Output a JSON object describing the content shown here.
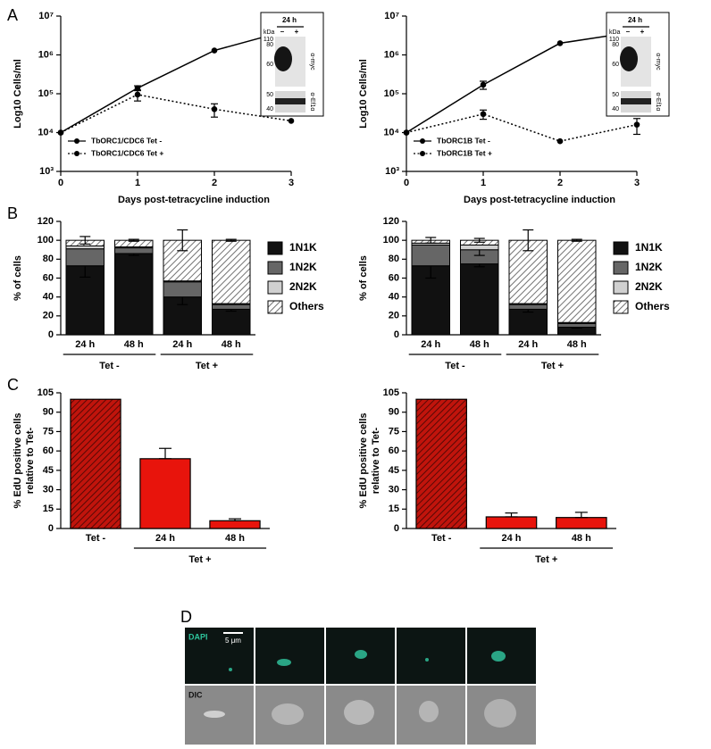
{
  "panel_labels": [
    "A",
    "B",
    "C",
    "D"
  ],
  "chart_data": [
    {
      "type": "line",
      "xlabel": "Days post-tetracycline induction",
      "ylabel": "Log10 Cells/ml",
      "x": [
        0,
        1,
        2,
        3
      ],
      "xlim": [
        0,
        3
      ],
      "xticks": [
        0,
        1,
        2,
        3
      ],
      "yscale": "log",
      "ylim": [
        1000,
        10000000
      ],
      "yticks": [
        {
          "value": 1000,
          "label": "10³"
        },
        {
          "value": 10000,
          "label": "10⁴"
        },
        {
          "value": 100000,
          "label": "10⁵"
        },
        {
          "value": 1000000,
          "label": "10⁶"
        },
        {
          "value": 10000000,
          "label": "10⁷"
        }
      ],
      "legend": "lower left",
      "series": [
        {
          "name": "TbORC1/CDC6 Tet -",
          "color": "#000000",
          "linestyle": "solid",
          "values": [
            10000,
            140000,
            1300000,
            4500000
          ],
          "errors": [
            null,
            20000,
            null,
            null
          ]
        },
        {
          "name": "TbORC1/CDC6 Tet +",
          "color": "#000000",
          "linestyle": "dotted",
          "values": [
            10000,
            95000,
            40000,
            20000
          ],
          "errors": [
            null,
            30000,
            15000,
            null
          ]
        }
      ],
      "inset": {
        "title": "24 h",
        "unit": "kDa",
        "lanes": [
          "–",
          "+"
        ],
        "markers_top": [
          110,
          80,
          60
        ],
        "markers_bottom": [
          50,
          40
        ],
        "antibodies": [
          "α-myc",
          "α-Ef1α"
        ]
      }
    },
    {
      "type": "line",
      "xlabel": "Days post-tetracycline induction",
      "ylabel": "Log10 Cells/ml",
      "x": [
        0,
        1,
        2,
        3
      ],
      "xlim": [
        0,
        3
      ],
      "xticks": [
        0,
        1,
        2,
        3
      ],
      "yscale": "log",
      "ylim": [
        1000,
        10000000
      ],
      "yticks": [
        {
          "value": 1000,
          "label": "10³"
        },
        {
          "value": 10000,
          "label": "10⁴"
        },
        {
          "value": 100000,
          "label": "10⁵"
        },
        {
          "value": 1000000,
          "label": "10⁶"
        },
        {
          "value": 10000000,
          "label": "10⁷"
        }
      ],
      "legend": "lower left",
      "series": [
        {
          "name": "TbORC1B Tet -",
          "color": "#000000",
          "linestyle": "solid",
          "values": [
            10000,
            170000,
            2000000,
            4000000
          ],
          "errors": [
            null,
            40000,
            null,
            null
          ]
        },
        {
          "name": "TbORC1B Tet +",
          "color": "#000000",
          "linestyle": "dotted",
          "values": [
            10000,
            30000,
            6000,
            16000
          ],
          "errors": [
            null,
            8000,
            null,
            7000
          ]
        }
      ],
      "inset": {
        "title": "24 h",
        "unit": "kDa",
        "lanes": [
          "–",
          "+"
        ],
        "markers_top": [
          110,
          80,
          60
        ],
        "markers_bottom": [
          50,
          40
        ],
        "antibodies": [
          "α-myc",
          "α-Ef1α"
        ]
      }
    },
    {
      "type": "stacked_bar",
      "ylabel": "% of cells",
      "ylim": [
        0,
        120
      ],
      "yticks": [
        0,
        20,
        40,
        60,
        80,
        100,
        120
      ],
      "groups": [
        {
          "name": "Tet -",
          "categories": [
            "24 h",
            "48 h"
          ]
        },
        {
          "name": "Tet +",
          "categories": [
            "24 h",
            "48 h"
          ]
        }
      ],
      "series": [
        {
          "name": "1N1K",
          "color": "#111111",
          "values": [
            73,
            86,
            40,
            27
          ],
          "errors": [
            12,
            2,
            8,
            2
          ]
        },
        {
          "name": "1N2K",
          "color": "#666666",
          "values": [
            18,
            6,
            16,
            5
          ],
          "errors": [
            null,
            null,
            null,
            null
          ]
        },
        {
          "name": "2N2K",
          "color": "#d0d0d0",
          "values": [
            3,
            1,
            1,
            1
          ],
          "errors": [
            null,
            null,
            null,
            null
          ]
        },
        {
          "name": "Others",
          "color": "#ffffff",
          "hatch": true,
          "values": [
            6,
            7,
            43,
            67
          ],
          "errors": [
            4,
            1,
            11,
            1
          ]
        }
      ]
    },
    {
      "type": "stacked_bar",
      "ylabel": "% of cells",
      "ylim": [
        0,
        120
      ],
      "yticks": [
        0,
        20,
        40,
        60,
        80,
        100,
        120
      ],
      "groups": [
        {
          "name": "Tet -",
          "categories": [
            "24 h",
            "48 h"
          ]
        },
        {
          "name": "Tet +",
          "categories": [
            "24 h",
            "48 h"
          ]
        }
      ],
      "series": [
        {
          "name": "1N1K",
          "color": "#111111",
          "values": [
            73,
            75,
            27,
            8
          ],
          "errors": [
            13,
            3,
            3,
            1
          ]
        },
        {
          "name": "1N2K",
          "color": "#666666",
          "values": [
            22,
            15,
            5,
            4
          ],
          "errors": [
            null,
            6,
            null,
            null
          ]
        },
        {
          "name": "2N2K",
          "color": "#d0d0d0",
          "values": [
            2,
            5,
            1,
            1
          ],
          "errors": [
            null,
            null,
            null,
            null
          ]
        },
        {
          "name": "Others",
          "color": "#ffffff",
          "hatch": true,
          "values": [
            3,
            5,
            67,
            87
          ],
          "errors": [
            3,
            2,
            11,
            1
          ]
        }
      ]
    },
    {
      "type": "bar",
      "ylabel": [
        "% EdU positive cells",
        "relative to Tet-"
      ],
      "ylim": [
        0,
        105
      ],
      "yticks": [
        0,
        15,
        30,
        45,
        60,
        75,
        90,
        105
      ],
      "groups": [
        {
          "categories": [
            "Tet -"
          ]
        },
        {
          "name": "Tet +",
          "categories": [
            "24 h",
            "48 h"
          ]
        }
      ],
      "values": [
        100,
        54,
        6
      ],
      "errors": [
        null,
        8,
        1.5
      ],
      "colors": [
        "#c0140c",
        "#e8140c",
        "#e8140c"
      ],
      "hatch": [
        true,
        false,
        false
      ]
    },
    {
      "type": "bar",
      "ylabel": [
        "% EdU positive cells",
        "relative to Tet-"
      ],
      "ylim": [
        0,
        105
      ],
      "yticks": [
        0,
        15,
        30,
        45,
        60,
        75,
        90,
        105
      ],
      "groups": [
        {
          "categories": [
            "Tet -"
          ]
        },
        {
          "name": "Tet +",
          "categories": [
            "24 h",
            "48 h"
          ]
        }
      ],
      "values": [
        100,
        9,
        8.5
      ],
      "errors": [
        null,
        3,
        4
      ],
      "colors": [
        "#c0140c",
        "#e8140c",
        "#e8140c"
      ],
      "hatch": [
        true,
        false,
        false
      ]
    }
  ],
  "micrographs": {
    "stains": [
      "DAPI",
      "DIC"
    ],
    "scale_bar": "5 μm"
  }
}
